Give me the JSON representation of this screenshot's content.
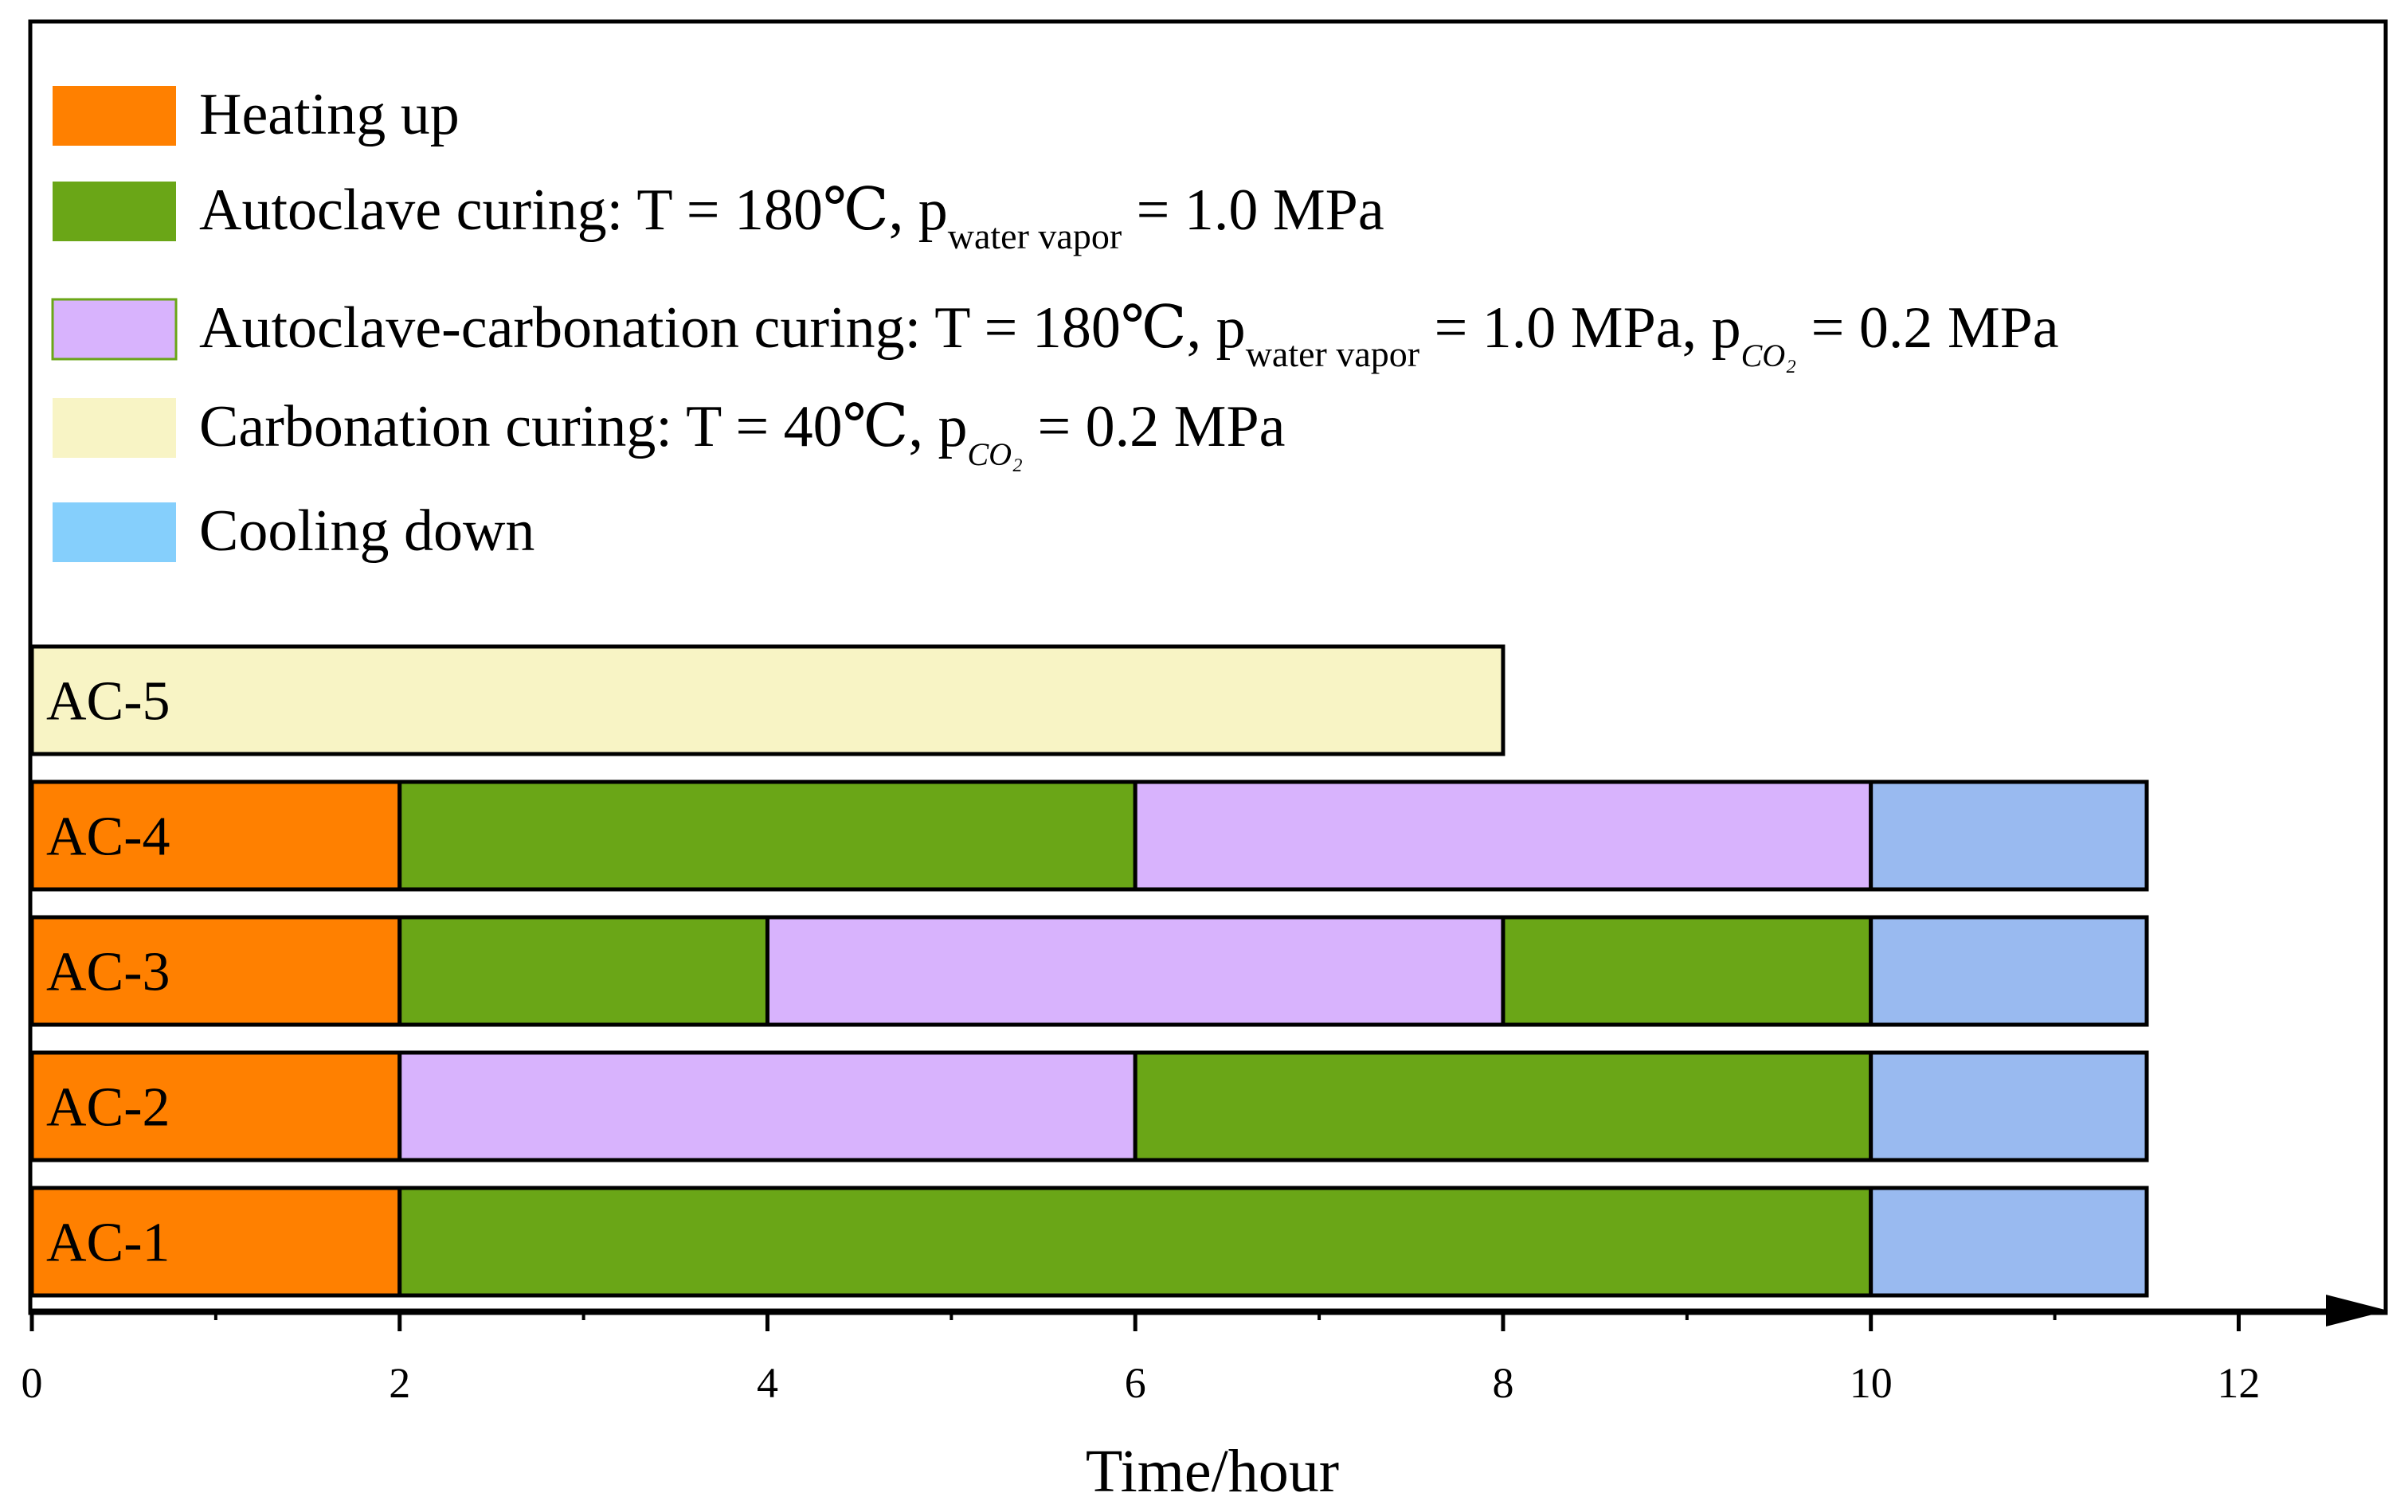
{
  "chart_data": {
    "type": "bar",
    "orientation": "horizontal-stacked",
    "xlabel": "Time/hour",
    "xlim": [
      0,
      13
    ],
    "xticks": [
      0,
      2,
      4,
      6,
      8,
      10,
      12
    ],
    "legend_position": "top-left",
    "phases": {
      "heat": {
        "color": "#ff8000",
        "label": "Heating up"
      },
      "auto": {
        "color": "#6aa617",
        "label_pre": "Autoclave curing: T = 180℃, p",
        "sub_water": "water vapor",
        "label_post": " = 1.0 MPa"
      },
      "ac": {
        "color": "#d8b3fd",
        "label_pre": "Autoclave-carbonation curing: T = 180℃, p",
        "sub_water": "water vapor",
        "label_mid": " = 1.0 MPa, p",
        "sub_co2": "CO₂",
        "label_post": " = 0.2 MPa"
      },
      "carb": {
        "color": "#f8f4c5",
        "label_pre": "Carbonation curing: T = 40℃, p",
        "sub_co2": "CO₂",
        "label_post": " = 0.2 MPa"
      },
      "cool": {
        "color": "#99baf0",
        "legend_color": "#85cffc",
        "label": "Cooling down"
      }
    },
    "legend_order": [
      "heat",
      "auto",
      "ac",
      "carb",
      "cool"
    ],
    "series": [
      {
        "name": "AC-5",
        "segments": [
          {
            "phase": "carb",
            "start": 0,
            "end": 8
          }
        ]
      },
      {
        "name": "AC-4",
        "segments": [
          {
            "phase": "heat",
            "start": 0,
            "end": 2
          },
          {
            "phase": "auto",
            "start": 2,
            "end": 6
          },
          {
            "phase": "ac",
            "start": 6,
            "end": 10
          },
          {
            "phase": "cool",
            "start": 10,
            "end": 11.5
          }
        ]
      },
      {
        "name": "AC-3",
        "segments": [
          {
            "phase": "heat",
            "start": 0,
            "end": 2
          },
          {
            "phase": "auto",
            "start": 2,
            "end": 4
          },
          {
            "phase": "ac",
            "start": 4,
            "end": 8
          },
          {
            "phase": "auto",
            "start": 8,
            "end": 10
          },
          {
            "phase": "cool",
            "start": 10,
            "end": 11.5
          }
        ]
      },
      {
        "name": "AC-2",
        "segments": [
          {
            "phase": "heat",
            "start": 0,
            "end": 2
          },
          {
            "phase": "ac",
            "start": 2,
            "end": 6
          },
          {
            "phase": "auto",
            "start": 6,
            "end": 10
          },
          {
            "phase": "cool",
            "start": 10,
            "end": 11.5
          }
        ]
      },
      {
        "name": "AC-1",
        "segments": [
          {
            "phase": "heat",
            "start": 0,
            "end": 2
          },
          {
            "phase": "auto",
            "start": 2,
            "end": 10
          },
          {
            "phase": "cool",
            "start": 10,
            "end": 11.5
          }
        ]
      }
    ]
  }
}
